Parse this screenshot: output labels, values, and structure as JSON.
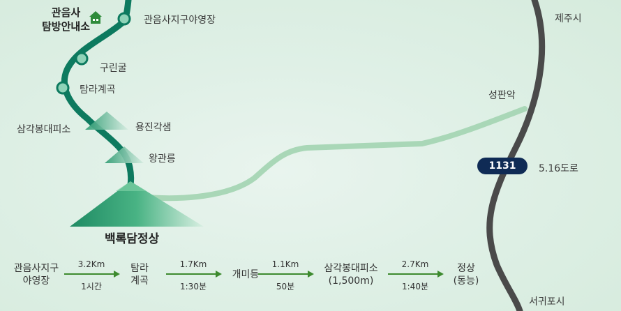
{
  "map": {
    "trail_start": "관음사\n탐방안내소",
    "places": {
      "campground": "관음사지구야영장",
      "gurin_cave": "구린굴",
      "tamna_valley": "탐라계곡",
      "samgak_shelter": "삼각봉대피소",
      "yongjin_spring": "용진각샘",
      "wanggwan": "왕관릉",
      "summit": "백록담정상",
      "seongpanak": "성판악",
      "jeju_city": "제주시",
      "seogwipo_city": "서귀포시"
    },
    "road": {
      "number": "1131",
      "name": "5.16도로"
    },
    "icon": "house-icon",
    "colors": {
      "trail": "#0d7a5f",
      "road": "#4a4a4a",
      "other_trail": "#a9d7b7",
      "badge": "#0f2b55"
    }
  },
  "timeline": {
    "stops": [
      {
        "label": "관음사지구\n야영장"
      },
      {
        "label": "탐라\n계곡"
      },
      {
        "label": "개미등"
      },
      {
        "label": "삼각봉대피소\n(1,500m)"
      },
      {
        "label": "정상\n(동능)"
      }
    ],
    "segments": [
      {
        "distance": "3.2Km",
        "time": "1시간"
      },
      {
        "distance": "1.7Km",
        "time": "1:30분"
      },
      {
        "distance": "1.1Km",
        "time": "50분"
      },
      {
        "distance": "2.7Km",
        "time": "1:40분"
      }
    ]
  }
}
